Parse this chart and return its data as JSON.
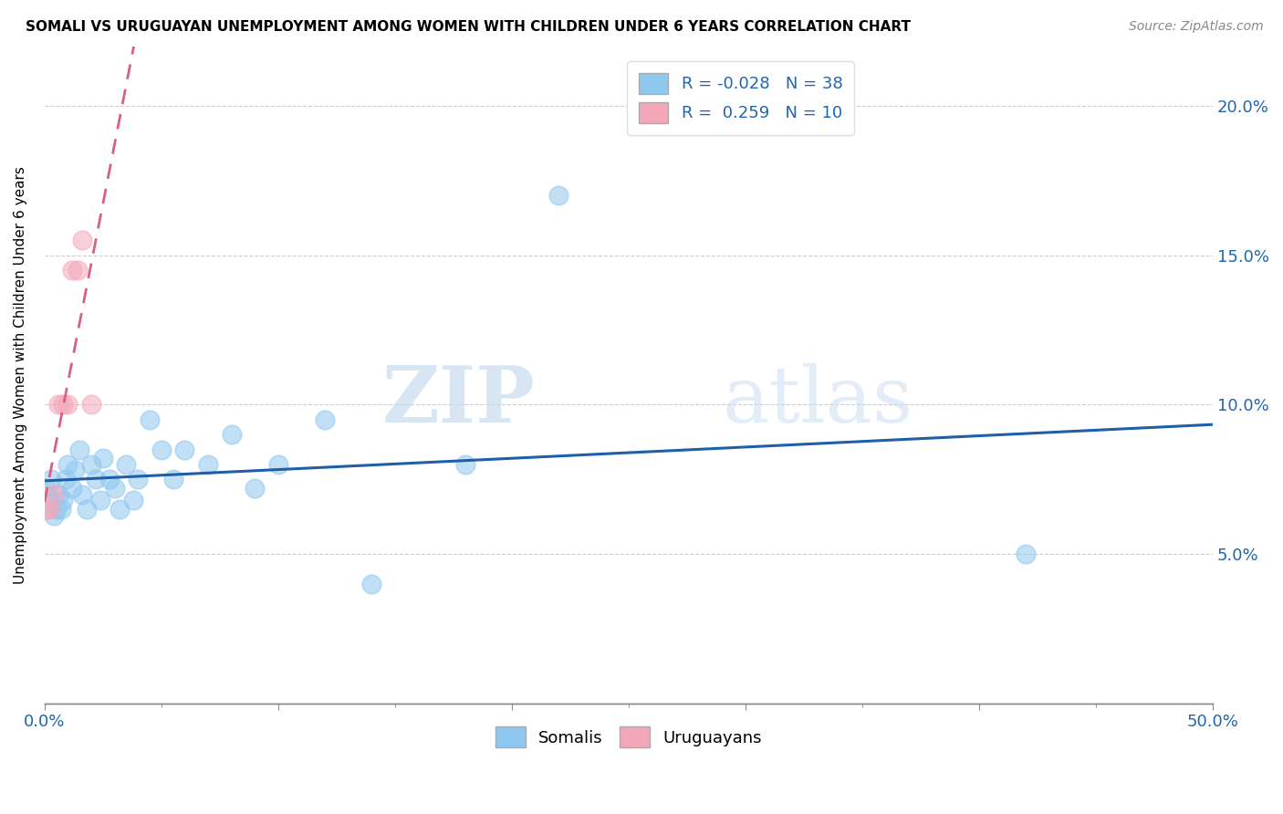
{
  "title": "SOMALI VS URUGUAYAN UNEMPLOYMENT AMONG WOMEN WITH CHILDREN UNDER 6 YEARS CORRELATION CHART",
  "source": "Source: ZipAtlas.com",
  "ylabel": "Unemployment Among Women with Children Under 6 years",
  "xlim": [
    0,
    0.5
  ],
  "ylim": [
    0.0,
    0.22
  ],
  "yticks": [
    0.05,
    0.1,
    0.15,
    0.2
  ],
  "ytick_labels": [
    "5.0%",
    "10.0%",
    "15.0%",
    "20.0%"
  ],
  "somali_R": -0.028,
  "somali_N": 38,
  "uruguayan_R": 0.259,
  "uruguayan_N": 10,
  "somali_color": "#8EC8F0",
  "uruguayan_color": "#F4A7B9",
  "somali_line_color": "#1E5FA8",
  "uruguayan_line_color": "#D96080",
  "background_color": "#FFFFFF",
  "watermark_zip": "ZIP",
  "watermark_atlas": "atlas",
  "somali_x": [
    0.001,
    0.002,
    0.003,
    0.004,
    0.005,
    0.006,
    0.007,
    0.008,
    0.009,
    0.01,
    0.012,
    0.013,
    0.015,
    0.016,
    0.018,
    0.02,
    0.022,
    0.024,
    0.025,
    0.028,
    0.03,
    0.032,
    0.035,
    0.038,
    0.04,
    0.045,
    0.05,
    0.055,
    0.06,
    0.07,
    0.08,
    0.09,
    0.1,
    0.12,
    0.14,
    0.18,
    0.22,
    0.42
  ],
  "somali_y": [
    0.072,
    0.068,
    0.075,
    0.063,
    0.065,
    0.07,
    0.065,
    0.068,
    0.075,
    0.08,
    0.072,
    0.078,
    0.085,
    0.07,
    0.065,
    0.08,
    0.075,
    0.068,
    0.082,
    0.075,
    0.072,
    0.065,
    0.08,
    0.068,
    0.075,
    0.095,
    0.085,
    0.075,
    0.085,
    0.08,
    0.09,
    0.072,
    0.08,
    0.095,
    0.04,
    0.08,
    0.17,
    0.05
  ],
  "uruguayan_x": [
    0.001,
    0.002,
    0.004,
    0.006,
    0.008,
    0.01,
    0.012,
    0.014,
    0.016,
    0.02
  ],
  "uruguayan_y": [
    0.065,
    0.065,
    0.07,
    0.1,
    0.1,
    0.1,
    0.145,
    0.145,
    0.155,
    0.1
  ]
}
